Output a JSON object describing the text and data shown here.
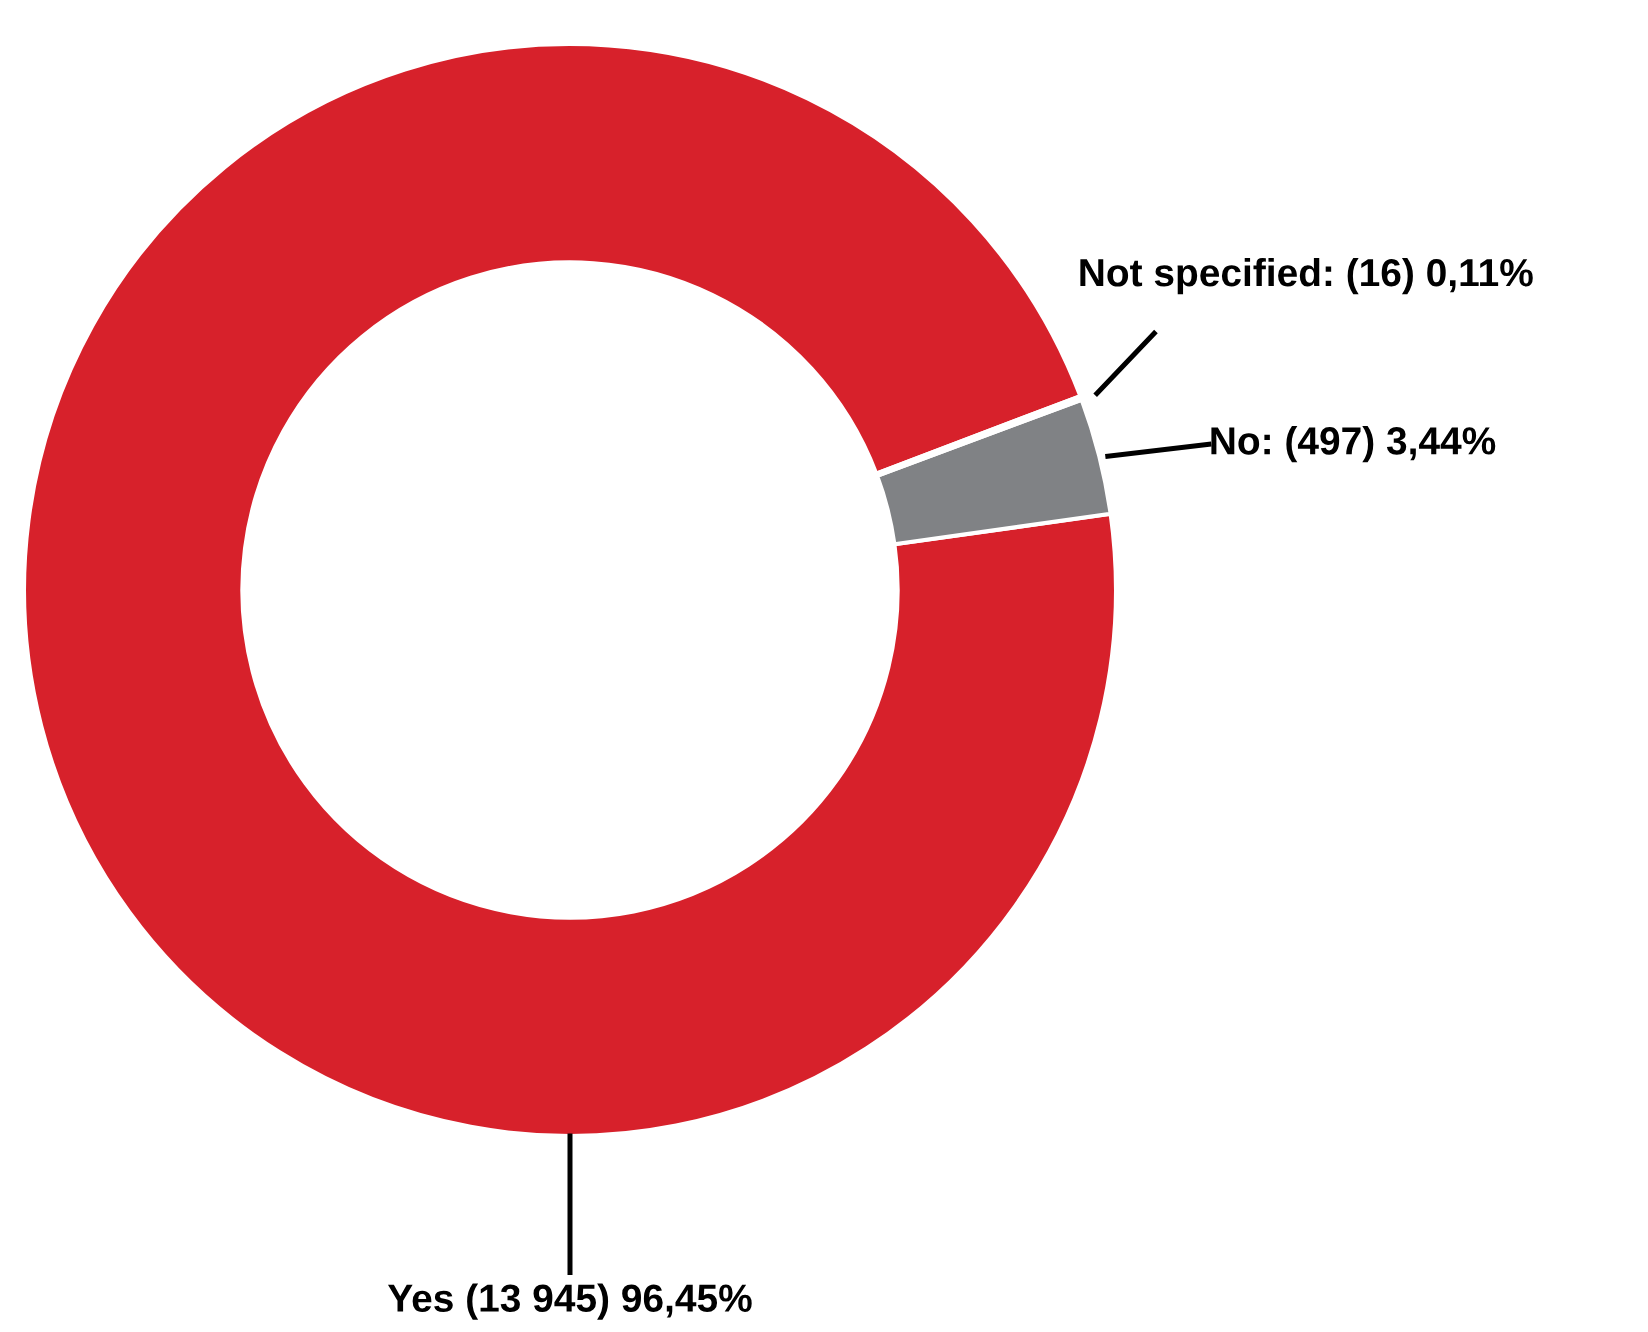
{
  "chart_data": {
    "type": "donut",
    "categories": [
      "Yes",
      "No",
      "Not specified"
    ],
    "values": [
      13945,
      497,
      16
    ],
    "value_labels": [
      "(13 945) 96,45%",
      "(497) 3,44%",
      "(16) 0,11%"
    ],
    "colors": [
      "#d7212b",
      "#808285",
      "#d7212b"
    ]
  }
}
